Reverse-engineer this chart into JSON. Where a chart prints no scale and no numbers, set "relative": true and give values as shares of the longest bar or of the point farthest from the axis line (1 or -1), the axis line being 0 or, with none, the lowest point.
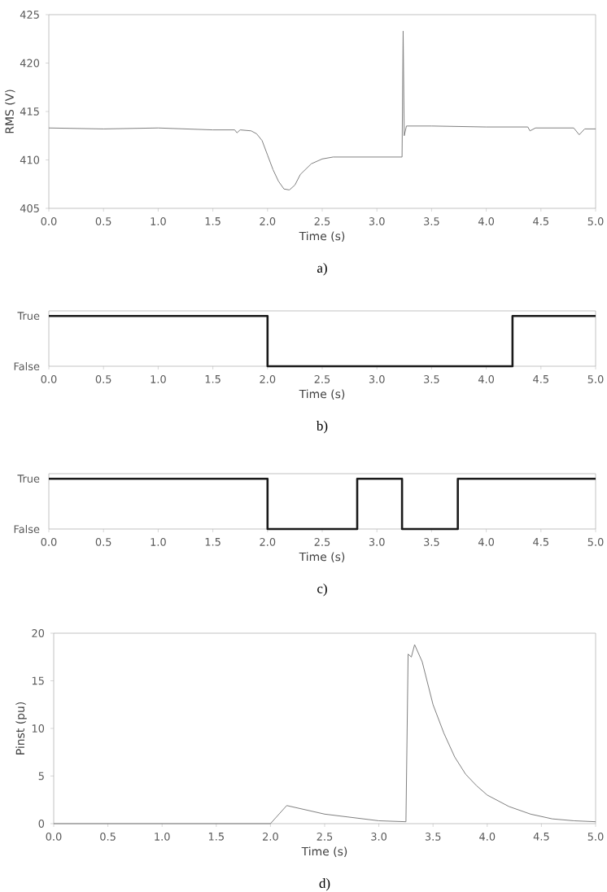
{
  "chart_data": [
    {
      "type": "line",
      "xlabel": "Time (s)",
      "ylabel": "RMS (V)",
      "annotations": [
        "a)"
      ],
      "xlim": [
        0,
        5
      ],
      "ylim": [
        405,
        425
      ],
      "xticks": [
        {
          "value": 0,
          "label": "0.0"
        },
        0.5,
        {
          "value": 1,
          "label": "1.0"
        },
        1.5,
        {
          "value": 2,
          "label": "2.0"
        },
        2.5,
        {
          "value": 3,
          "label": "3.0"
        },
        3.5,
        {
          "value": 4,
          "label": "4.0"
        },
        4.5,
        {
          "value": 5,
          "label": "5.0"
        }
      ],
      "yticks": [
        405,
        410,
        415,
        420,
        425
      ],
      "series": [
        {
          "color": "#808080",
          "x": [
            0,
            0.5,
            1.0,
            1.5,
            1.7,
            1.72,
            1.75,
            1.85,
            1.9,
            1.95,
            2.0,
            2.05,
            2.1,
            2.15,
            2.2,
            2.25,
            2.3,
            2.4,
            2.5,
            2.6,
            2.8,
            3.0,
            3.2,
            3.23,
            3.24,
            3.25,
            3.27,
            3.5,
            4.0,
            4.38,
            4.4,
            4.45,
            4.8,
            4.85,
            4.9,
            5.0
          ],
          "values": [
            413.3,
            413.2,
            413.3,
            413.1,
            413.1,
            412.8,
            413.1,
            413.0,
            412.7,
            412.0,
            410.5,
            409.0,
            407.8,
            407.0,
            406.9,
            407.4,
            408.5,
            409.6,
            410.1,
            410.3,
            410.3,
            410.3,
            410.3,
            410.3,
            423.3,
            412.5,
            413.5,
            413.5,
            413.4,
            413.4,
            413.0,
            413.3,
            413.3,
            412.6,
            413.2,
            413.2
          ]
        }
      ]
    },
    {
      "type": "step",
      "relative": true,
      "xlabel": "Time (s)",
      "annotations": [
        "True",
        "False",
        "b)"
      ],
      "xlim": [
        0,
        5
      ],
      "xticks": [
        {
          "value": 0,
          "label": "0.0"
        },
        0.5,
        {
          "value": 1,
          "label": "1.0"
        },
        1.5,
        {
          "value": 2,
          "label": "2.0"
        },
        2.5,
        {
          "value": 3,
          "label": "3.0"
        },
        3.5,
        {
          "value": 4,
          "label": "4.0"
        },
        4.5,
        {
          "value": 5,
          "label": "5.0"
        }
      ],
      "series": [
        {
          "color": "#1a1a1a",
          "x": [
            0,
            2.0,
            4.24,
            5
          ],
          "values": [
            1,
            0,
            1,
            1
          ]
        }
      ]
    },
    {
      "type": "step",
      "relative": true,
      "xlabel": "Time (s)",
      "annotations": [
        "True",
        "False",
        "c)"
      ],
      "xlim": [
        0,
        5
      ],
      "xticks": [
        {
          "value": 0,
          "label": "0.0"
        },
        0.5,
        {
          "value": 1,
          "label": "1.0"
        },
        1.5,
        {
          "value": 2,
          "label": "2.0"
        },
        2.5,
        {
          "value": 3,
          "label": "3.0"
        },
        3.5,
        {
          "value": 4,
          "label": "4.0"
        },
        4.5,
        {
          "value": 5,
          "label": "5.0"
        }
      ],
      "series": [
        {
          "color": "#1a1a1a",
          "x": [
            0,
            2.0,
            2.82,
            3.23,
            3.74,
            5
          ],
          "values": [
            1,
            0,
            1,
            0,
            1,
            1
          ]
        }
      ]
    },
    {
      "type": "line",
      "xlabel": "Time (s)",
      "ylabel": "Pinst (pu)",
      "annotations": [
        "d)"
      ],
      "xlim": [
        0,
        5
      ],
      "ylim": [
        0,
        20
      ],
      "xticks": [
        {
          "value": 0,
          "label": "0.0"
        },
        0.5,
        {
          "value": 1,
          "label": "1.0"
        },
        1.5,
        {
          "value": 2,
          "label": "2.0"
        },
        2.5,
        {
          "value": 3,
          "label": "3.0"
        },
        3.5,
        {
          "value": 4,
          "label": "4.0"
        },
        4.5,
        {
          "value": 5,
          "label": "5.0"
        }
      ],
      "yticks": [
        0,
        5,
        10,
        15,
        20
      ],
      "series": [
        {
          "color": "#808080",
          "x": [
            0,
            1.95,
            2.0,
            2.15,
            2.5,
            3.0,
            3.25,
            3.27,
            3.3,
            3.33,
            3.4,
            3.5,
            3.6,
            3.7,
            3.8,
            3.9,
            4.0,
            4.2,
            4.4,
            4.6,
            4.8,
            5.0
          ],
          "values": [
            0,
            0,
            0,
            1.9,
            1.0,
            0.3,
            0.2,
            17.8,
            17.5,
            18.8,
            17.0,
            12.5,
            9.5,
            7.0,
            5.2,
            4.0,
            3.0,
            1.8,
            1.0,
            0.5,
            0.3,
            0.2
          ]
        }
      ]
    }
  ]
}
